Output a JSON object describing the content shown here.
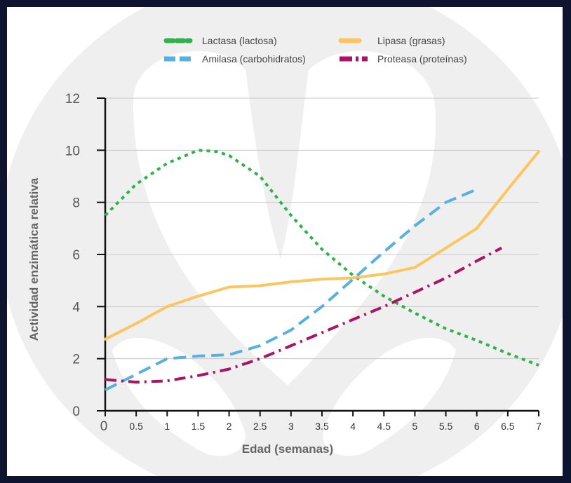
{
  "chart_data": {
    "type": "line",
    "title": "",
    "xlabel": "Edad (semanas)",
    "ylabel": "Actividad enzimática relativa",
    "xlim": [
      0,
      7
    ],
    "ylim": [
      0,
      12
    ],
    "x_ticks": [
      "0",
      "0.5",
      "1",
      "1.5",
      "2",
      "2.5",
      "3",
      "3.5",
      "4",
      "4.5",
      "5",
      "5.5",
      "6",
      "6.5",
      "7"
    ],
    "y_ticks": [
      "0",
      "2",
      "4",
      "6",
      "8",
      "10",
      "12"
    ],
    "grid": true,
    "legend_position": "top",
    "series": [
      {
        "name": "Lactasa (lactosa)",
        "color": "#2db34a",
        "style": "dotted",
        "points": [
          [
            0,
            7.5
          ],
          [
            0.5,
            8.7
          ],
          [
            1,
            9.5
          ],
          [
            1.5,
            10.0
          ],
          [
            1.8,
            9.95
          ],
          [
            2,
            9.8
          ],
          [
            2.5,
            9.0
          ],
          [
            3,
            7.5
          ],
          [
            3.5,
            6.2
          ],
          [
            4,
            5.2
          ],
          [
            4.5,
            4.4
          ],
          [
            5,
            3.75
          ],
          [
            5.5,
            3.15
          ],
          [
            6,
            2.7
          ],
          [
            6.5,
            2.2
          ],
          [
            7,
            1.75
          ]
        ]
      },
      {
        "name": "Lipasa (grasas)",
        "color": "#fcc55e",
        "style": "solid",
        "points": [
          [
            0,
            2.75
          ],
          [
            0.5,
            3.35
          ],
          [
            1,
            4.0
          ],
          [
            1.5,
            4.4
          ],
          [
            2,
            4.75
          ],
          [
            2.5,
            4.8
          ],
          [
            3,
            4.95
          ],
          [
            3.5,
            5.05
          ],
          [
            4,
            5.1
          ],
          [
            4.5,
            5.25
          ],
          [
            5,
            5.5
          ],
          [
            5.5,
            6.25
          ],
          [
            6,
            7.0
          ],
          [
            6.5,
            8.5
          ],
          [
            7,
            9.95
          ]
        ]
      },
      {
        "name": "Amilasa (carbohidratos)",
        "color": "#56b0e0",
        "style": "dashed",
        "points": [
          [
            0,
            0.8
          ],
          [
            0.5,
            1.4
          ],
          [
            1,
            2.0
          ],
          [
            1.5,
            2.1
          ],
          [
            2,
            2.15
          ],
          [
            2.5,
            2.5
          ],
          [
            3,
            3.1
          ],
          [
            3.5,
            4.0
          ],
          [
            4,
            5.05
          ],
          [
            4.5,
            6.1
          ],
          [
            5,
            7.1
          ],
          [
            5.5,
            8.0
          ],
          [
            6,
            8.5
          ]
        ]
      },
      {
        "name": "Proteasa (proteínas)",
        "color": "#aa1366",
        "style": "dashdot",
        "points": [
          [
            0,
            1.2
          ],
          [
            0.5,
            1.1
          ],
          [
            1,
            1.15
          ],
          [
            1.5,
            1.35
          ],
          [
            2,
            1.6
          ],
          [
            2.5,
            2.0
          ],
          [
            3,
            2.5
          ],
          [
            3.5,
            3.0
          ],
          [
            4,
            3.5
          ],
          [
            4.5,
            4.0
          ],
          [
            5,
            4.55
          ],
          [
            5.5,
            5.1
          ],
          [
            6,
            5.75
          ],
          [
            6.4,
            6.25
          ]
        ]
      }
    ]
  }
}
